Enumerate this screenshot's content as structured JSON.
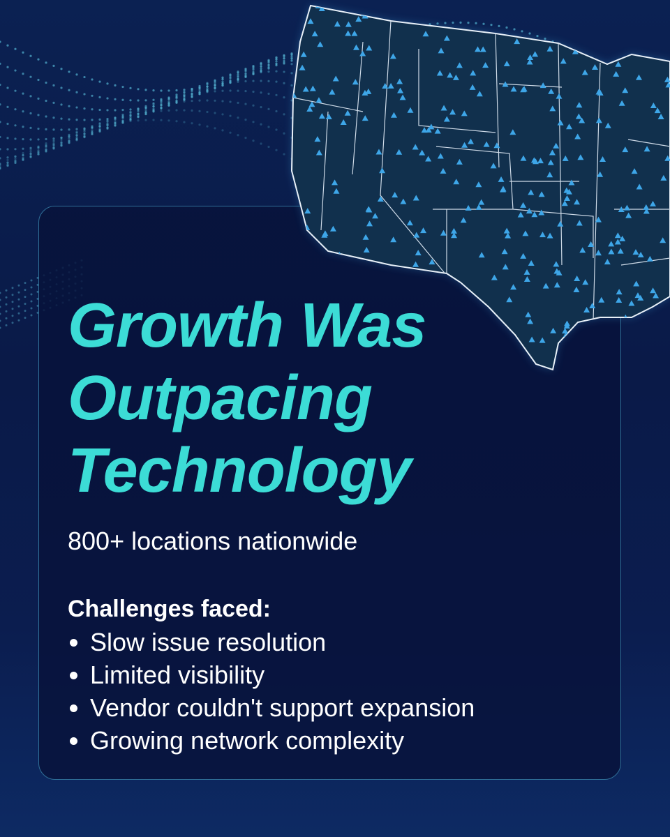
{
  "headline": {
    "lines": [
      "Growth Was",
      "Outpacing",
      "Technology"
    ]
  },
  "subtitle": "800+ locations nationwide",
  "challenges": {
    "heading": "Challenges faced:",
    "items": [
      "Slow issue resolution",
      "Limited visibility",
      "Vendor couldn't support expansion",
      "Growing network complexity"
    ]
  }
}
